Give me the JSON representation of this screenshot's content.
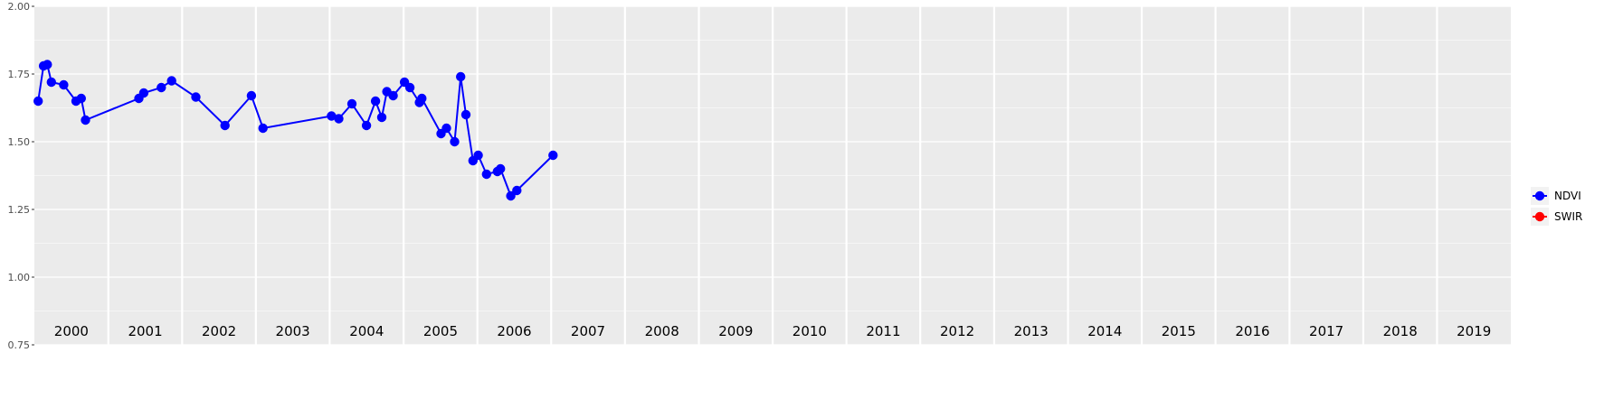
{
  "chart_data": {
    "type": "line",
    "x_axis": "date",
    "xlim": [
      "2000-01-01",
      "2020-01-01"
    ],
    "ylim": [
      0.75,
      2.0
    ],
    "y_ticks": [
      "0.75",
      "1.00",
      "1.25",
      "1.50",
      "1.75",
      "2.00"
    ],
    "y_tick_values": [
      0.75,
      1.0,
      1.25,
      1.5,
      1.75,
      2.0
    ],
    "years": [
      "2000",
      "2001",
      "2002",
      "2003",
      "2004",
      "2005",
      "2006",
      "2007",
      "2008",
      "2009",
      "2010",
      "2011",
      "2012",
      "2013",
      "2014",
      "2015",
      "2016",
      "2017",
      "2018",
      "2019"
    ],
    "grid": true,
    "legend_position": "right",
    "series": [
      {
        "name": "NDVI",
        "color": "#0000FF",
        "points": [
          [
            "2000-01-20",
            1.65
          ],
          [
            "2000-02-15",
            1.78
          ],
          [
            "2000-03-05",
            1.785
          ],
          [
            "2000-03-25",
            1.72
          ],
          [
            "2000-05-25",
            1.71
          ],
          [
            "2000-07-25",
            1.65
          ],
          [
            "2000-08-20",
            1.66
          ],
          [
            "2000-09-10",
            1.58
          ],
          [
            "2001-06-01",
            1.66
          ],
          [
            "2001-06-25",
            1.68
          ],
          [
            "2001-09-20",
            1.7
          ],
          [
            "2001-11-10",
            1.725
          ],
          [
            "2002-03-10",
            1.665
          ],
          [
            "2002-08-01",
            1.56
          ],
          [
            "2002-12-10",
            1.67
          ],
          [
            "2003-02-05",
            1.55
          ],
          [
            "2004-01-10",
            1.595
          ],
          [
            "2004-02-15",
            1.585
          ],
          [
            "2004-04-20",
            1.64
          ],
          [
            "2004-07-01",
            1.56
          ],
          [
            "2004-08-15",
            1.65
          ],
          [
            "2004-09-15",
            1.59
          ],
          [
            "2004-10-10",
            1.685
          ],
          [
            "2004-11-10",
            1.67
          ],
          [
            "2005-01-05",
            1.72
          ],
          [
            "2005-02-01",
            1.7
          ],
          [
            "2005-03-20",
            1.645
          ],
          [
            "2005-04-01",
            1.66
          ],
          [
            "2005-07-05",
            1.53
          ],
          [
            "2005-08-01",
            1.55
          ],
          [
            "2005-09-10",
            1.5
          ],
          [
            "2005-10-10",
            1.74
          ],
          [
            "2005-11-05",
            1.6
          ],
          [
            "2005-12-10",
            1.43
          ],
          [
            "2006-01-05",
            1.45
          ],
          [
            "2006-02-15",
            1.38
          ],
          [
            "2006-04-10",
            1.39
          ],
          [
            "2006-04-25",
            1.4
          ],
          [
            "2006-06-15",
            1.3
          ],
          [
            "2006-07-15",
            1.32
          ],
          [
            "2007-01-10",
            1.45
          ]
        ]
      },
      {
        "name": "SWIR",
        "color": "#FF0000",
        "points": []
      }
    ]
  }
}
